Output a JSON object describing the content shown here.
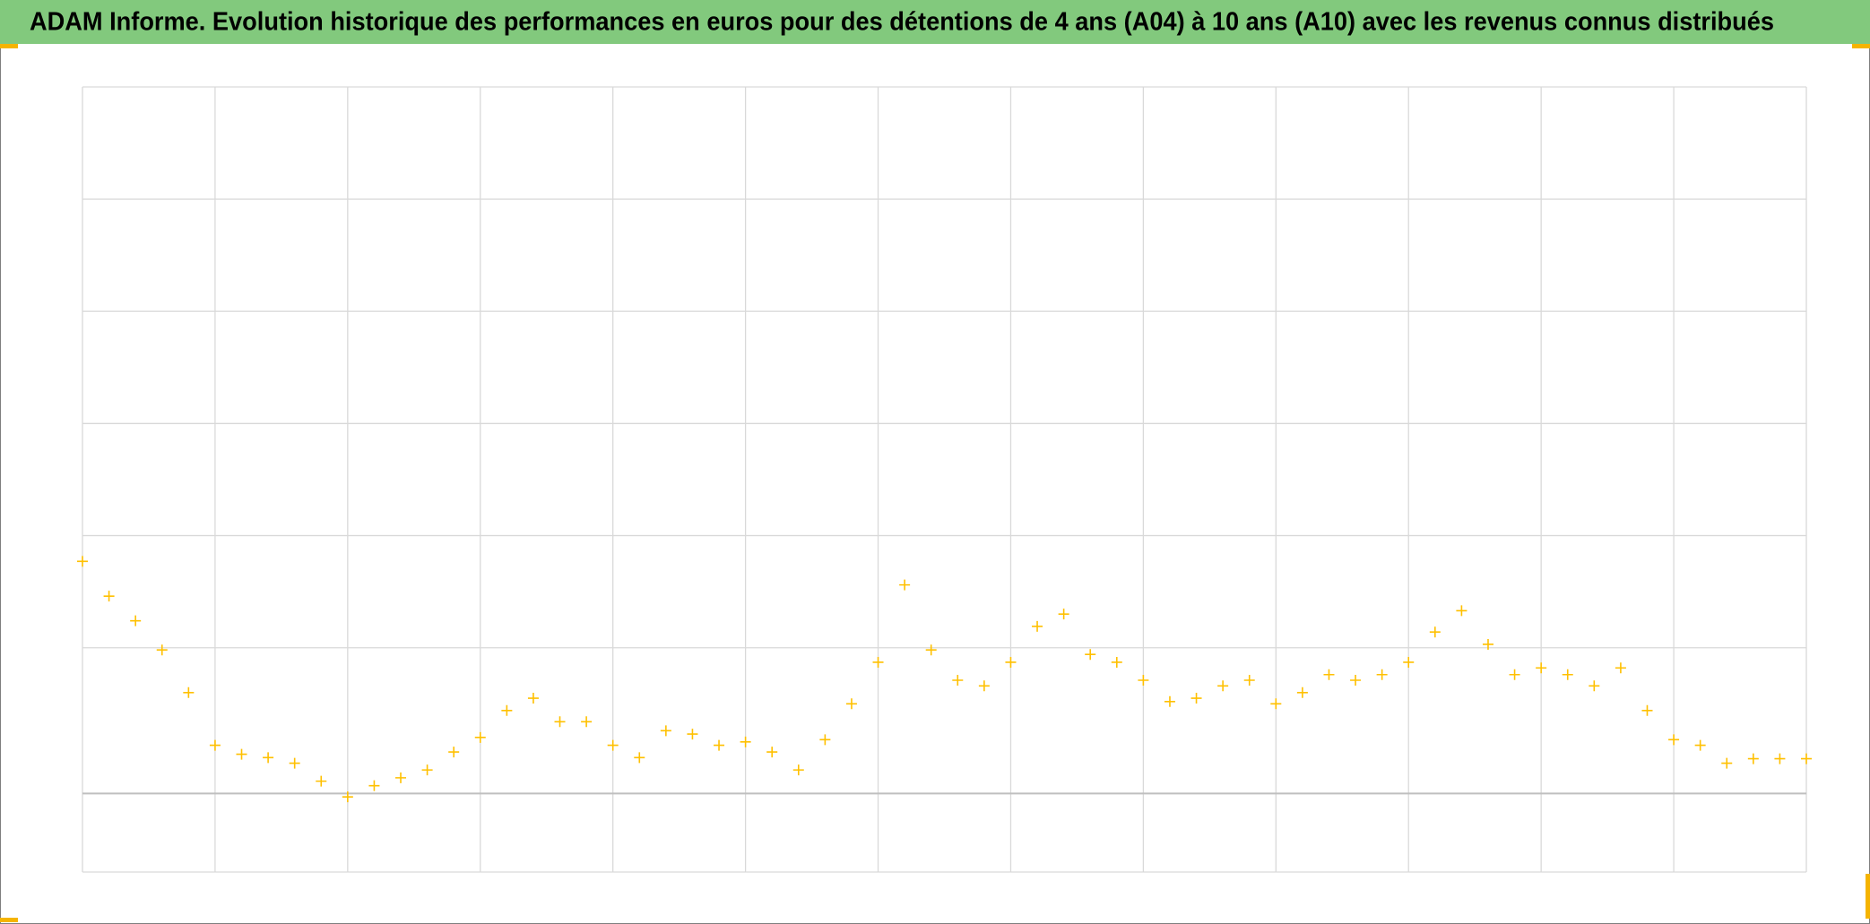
{
  "chart_data": {
    "type": "scatter",
    "title": "ADAM Informe. Evolution historique des performances en euros pour des détentions de 4 ans (A04) à 10 ans (A10) avec les revenus connus distribués",
    "color": "#ffc000",
    "marker": "+",
    "grid": true,
    "xlim": [
      0,
      13
    ],
    "xticks": [
      0,
      1,
      2,
      3,
      4,
      5,
      6,
      7,
      8,
      9,
      10,
      11,
      12,
      13
    ],
    "ylim": [
      -7,
      63
    ],
    "yticks": [
      -7,
      13,
      23,
      33,
      43,
      53,
      63
    ],
    "x": [
      0,
      0.2,
      0.4,
      0.6,
      0.8,
      1,
      1.2,
      1.4,
      1.6,
      1.8,
      2,
      2.2,
      2.4,
      2.6,
      2.8,
      3,
      3.2,
      3.4,
      3.6,
      3.8,
      4,
      4.2,
      4.4,
      4.6,
      4.8,
      5,
      5.2,
      5.4,
      5.6,
      5.8,
      6,
      6.2,
      6.4,
      6.6,
      6.8,
      7,
      7.2,
      7.4,
      7.6,
      7.8,
      8,
      8.2,
      8.4,
      8.6,
      8.8,
      9,
      9.2,
      9.4,
      9.6,
      9.8,
      10,
      10.2,
      10.4,
      10.6,
      10.8,
      11,
      11.2,
      11.4,
      11.6,
      11.8,
      12,
      12.2,
      12.4,
      12.6,
      12.8,
      13
    ],
    "values": [
      20.7,
      17.6,
      15.4,
      12.8,
      9.0,
      4.3,
      3.5,
      3.2,
      2.7,
      1.1,
      -0.3,
      0.7,
      1.4,
      2.1,
      3.7,
      5.0,
      7.4,
      8.5,
      6.4,
      6.4,
      4.3,
      3.2,
      5.6,
      5.3,
      4.3,
      4.6,
      3.7,
      2.1,
      4.8,
      8.0,
      11.7,
      18.6,
      12.8,
      10.1,
      9.6,
      11.7,
      14.9,
      16.0,
      12.4,
      11.7,
      10.1,
      8.2,
      8.5,
      9.6,
      10.1,
      8.0,
      9.0,
      10.6,
      10.1,
      10.6,
      11.7,
      14.4,
      16.3,
      13.3,
      10.6,
      11.2,
      10.6,
      9.6,
      11.2,
      7.4,
      4.8,
      4.3,
      2.7,
      3.1,
      3.1,
      3.1
    ]
  }
}
